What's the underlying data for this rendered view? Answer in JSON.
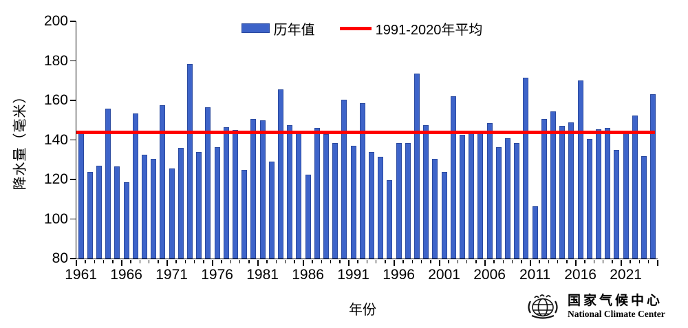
{
  "chart_data": {
    "type": "bar",
    "title": "",
    "xlabel": "年份",
    "ylabel": "降水量（毫米）",
    "ylim": [
      80,
      200
    ],
    "ytick_step": 20,
    "yticks": [
      80,
      100,
      120,
      140,
      160,
      180,
      200
    ],
    "xtick_labels": [
      "1961",
      "1966",
      "1971",
      "1976",
      "1981",
      "1986",
      "1991",
      "1996",
      "2001",
      "2006",
      "2011",
      "2016",
      "2021"
    ],
    "grid": false,
    "legend_position": "top-center",
    "categories": [
      1961,
      1962,
      1963,
      1964,
      1965,
      1966,
      1967,
      1968,
      1969,
      1970,
      1971,
      1972,
      1973,
      1974,
      1975,
      1976,
      1977,
      1978,
      1979,
      1980,
      1981,
      1982,
      1983,
      1984,
      1985,
      1986,
      1987,
      1988,
      1989,
      1990,
      1991,
      1992,
      1993,
      1994,
      1995,
      1996,
      1997,
      1998,
      1999,
      2000,
      2001,
      2002,
      2003,
      2004,
      2005,
      2006,
      2007,
      2008,
      2009,
      2010,
      2011,
      2012,
      2013,
      2014,
      2015,
      2016,
      2017,
      2018,
      2019,
      2020,
      2021,
      2022,
      2023,
      2024
    ],
    "series": [
      {
        "name": "历年值",
        "type": "bar",
        "color": "#3e64c9",
        "values": [
          144,
          124,
          127,
          156,
          126.5,
          118.5,
          153.5,
          132.5,
          130.5,
          157.5,
          125.5,
          136,
          178.5,
          134,
          156.5,
          136.5,
          146.5,
          145,
          125,
          150.5,
          150,
          129,
          165.5,
          147.5,
          143.5,
          122.5,
          146,
          143,
          138.5,
          160.5,
          137,
          158.5,
          134,
          131.5,
          119.5,
          138.5,
          138.5,
          173.5,
          147.5,
          130.5,
          124,
          162,
          142.5,
          144.5,
          143.5,
          148.5,
          136.5,
          141,
          138.5,
          171.5,
          106.5,
          150.5,
          154.5,
          147,
          149,
          170,
          140.5,
          145.5,
          146,
          135,
          144.5,
          152.5,
          132,
          163
        ]
      },
      {
        "name": "1991-2020年平均",
        "type": "line",
        "color": "#ff0000",
        "value": 144
      }
    ]
  },
  "logo": {
    "cn": "国家气候中心",
    "en": "National Climate Center"
  }
}
